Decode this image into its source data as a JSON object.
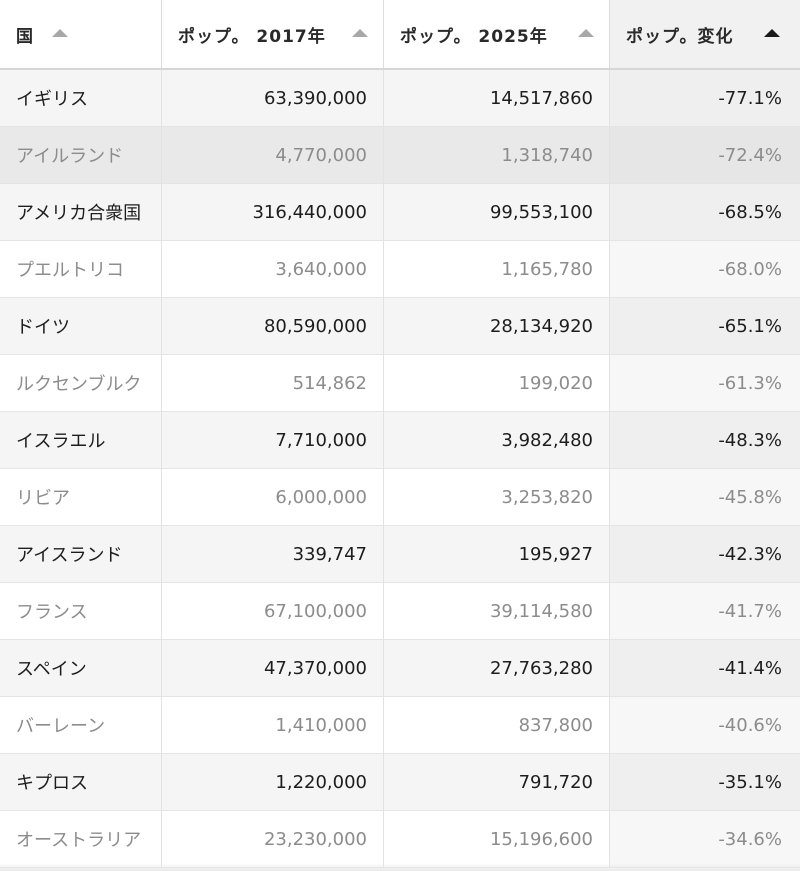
{
  "columns": [
    {
      "label": "国",
      "sort": "asc",
      "active": false
    },
    {
      "label": "ポップ。 2017年",
      "sort": "asc",
      "active": false
    },
    {
      "label": "ポップ。 2025年",
      "sort": "asc",
      "active": false
    },
    {
      "label": "ポップ。変化",
      "sort": "asc",
      "active": true
    }
  ],
  "rows": [
    {
      "country": "イギリス",
      "pop2017": "63,390,000",
      "pop2025": "14,517,860",
      "change": "-77.1%"
    },
    {
      "country": "アイルランド",
      "pop2017": "4,770,000",
      "pop2025": "1,318,740",
      "change": "-72.4%"
    },
    {
      "country": "アメリカ合衆国",
      "pop2017": "316,440,000",
      "pop2025": "99,553,100",
      "change": "-68.5%"
    },
    {
      "country": "プエルトリコ",
      "pop2017": "3,640,000",
      "pop2025": "1,165,780",
      "change": "-68.0%"
    },
    {
      "country": "ドイツ",
      "pop2017": "80,590,000",
      "pop2025": "28,134,920",
      "change": "-65.1%"
    },
    {
      "country": "ルクセンブルク",
      "pop2017": "514,862",
      "pop2025": "199,020",
      "change": "-61.3%"
    },
    {
      "country": "イスラエル",
      "pop2017": "7,710,000",
      "pop2025": "3,982,480",
      "change": "-48.3%"
    },
    {
      "country": "リビア",
      "pop2017": "6,000,000",
      "pop2025": "3,253,820",
      "change": "-45.8%"
    },
    {
      "country": "アイスランド",
      "pop2017": "339,747",
      "pop2025": "195,927",
      "change": "-42.3%"
    },
    {
      "country": "フランス",
      "pop2017": "67,100,000",
      "pop2025": "39,114,580",
      "change": "-41.7%"
    },
    {
      "country": "スペイン",
      "pop2017": "47,370,000",
      "pop2025": "27,763,280",
      "change": "-41.4%"
    },
    {
      "country": "バーレーン",
      "pop2017": "1,410,000",
      "pop2025": "837,800",
      "change": "-40.6%"
    },
    {
      "country": "キプロス",
      "pop2017": "1,220,000",
      "pop2025": "791,720",
      "change": "-35.1%"
    },
    {
      "country": "オーストラリア",
      "pop2017": "23,230,000",
      "pop2025": "15,196,600",
      "change": "-34.6%"
    }
  ],
  "highlighted_row": 1
}
